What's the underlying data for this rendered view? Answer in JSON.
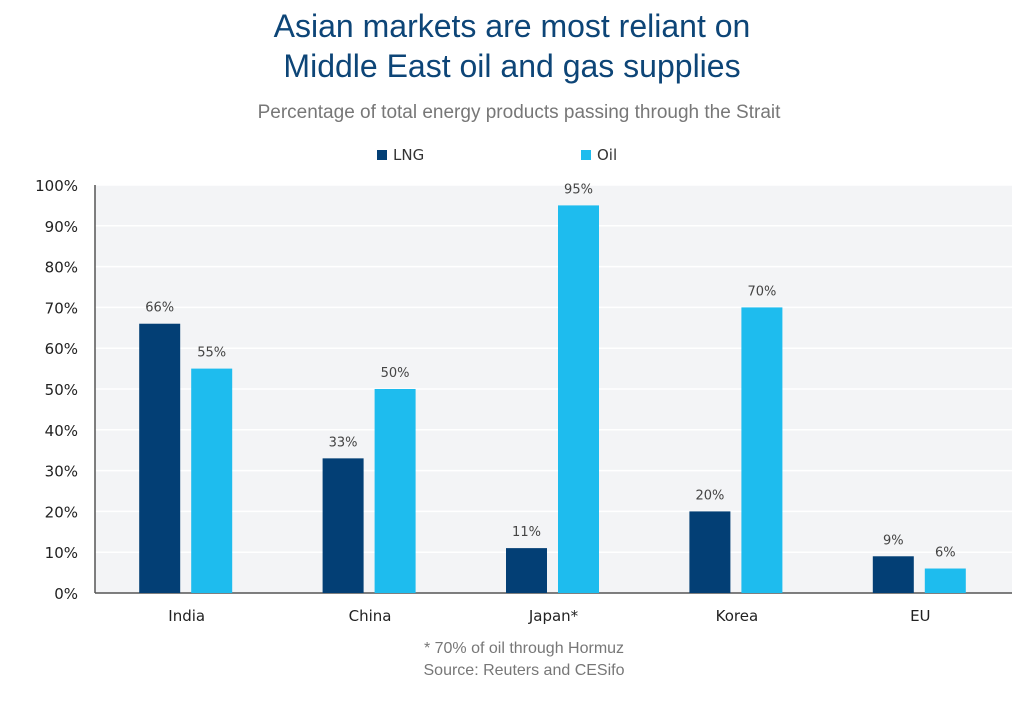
{
  "chart_data": {
    "type": "bar",
    "title_lines": [
      "Asian markets are most reliant on",
      "Middle East oil and gas supplies"
    ],
    "subtitle": "Percentage of total energy products passing through the Strait",
    "categories": [
      "India",
      "China",
      "Japan*",
      "Korea",
      "EU"
    ],
    "series": [
      {
        "name": "LNG",
        "color": "#033f75",
        "values": [
          66,
          33,
          11,
          20,
          9
        ]
      },
      {
        "name": "Oil",
        "color": "#1ebcee",
        "values": [
          55,
          50,
          95,
          70,
          6
        ]
      }
    ],
    "ylim": [
      0,
      100
    ],
    "yticks": [
      "0%",
      "10%",
      "20%",
      "30%",
      "40%",
      "50%",
      "60%",
      "70%",
      "80%",
      "90%",
      "100%"
    ],
    "value_suffix": "%",
    "grid": true,
    "legend_position": "top",
    "plot_background": "#f3f4f6",
    "footnotes": [
      "* 70% of oil through Hormuz",
      "Source: Reuters and CESifo"
    ]
  }
}
